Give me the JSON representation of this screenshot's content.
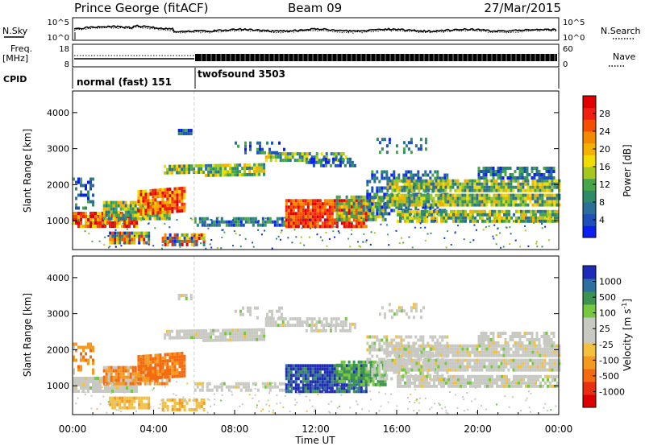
{
  "header": {
    "station": "Prince George (fitACF)",
    "beam": "Beam 09",
    "date": "27/Mar/2015"
  },
  "status_panels": {
    "nsky_label": "N.Sky",
    "nsky_ticks": [
      "10^5",
      "10^0"
    ],
    "nsearch_label": "N.Search",
    "nsearch_ticks": [
      "10^5",
      "10^0"
    ],
    "freq_label_1": "Freq.",
    "freq_label_2": "[MHz]",
    "freq_ticks": [
      "18",
      "8"
    ],
    "nave_label": "Nave",
    "nave_ticks": [
      "60",
      "0"
    ],
    "cpid_label": "CPID",
    "cpid_segments": [
      {
        "label": "normal (fast) 151",
        "start_hour": 0,
        "end_hour": 6
      },
      {
        "label": "twofsound 3503",
        "start_hour": 6,
        "end_hour": 24
      }
    ]
  },
  "chart_data": [
    {
      "type": "heatmap",
      "name": "power",
      "ylabel": "Slant Range [km]",
      "ylim": [
        200,
        4600
      ],
      "yticks": [
        1000,
        2000,
        3000,
        4000
      ],
      "colorbar": {
        "label": "Power [dB]",
        "range": [
          0,
          32
        ],
        "ticks": [
          4,
          8,
          12,
          16,
          20,
          24,
          28
        ],
        "colors": [
          "#0a20f0",
          "#1f4fb8",
          "#2c6e9a",
          "#2f8a6a",
          "#47a64a",
          "#a6c81e",
          "#f0dc00",
          "#f5b000",
          "#f58a00",
          "#f55000",
          "#f02010",
          "#e00000"
        ]
      }
    },
    {
      "type": "heatmap",
      "name": "velocity",
      "ylabel": "Slant Range [km]",
      "ylim": [
        200,
        4600
      ],
      "yticks": [
        1000,
        2000,
        3000,
        4000
      ],
      "colorbar": {
        "label": "Velocity [m s^-1]",
        "tick_labels": [
          "1000",
          "500",
          "100",
          "25",
          "-25",
          "-100",
          "-500",
          "-1000"
        ],
        "colors": [
          "#1e2ab8",
          "#2f6fa0",
          "#3c9450",
          "#76c840",
          "#c9c9c4",
          "#c9c9c4",
          "#f4c040",
          "#f59a20",
          "#f56a10",
          "#e83010",
          "#dd0000"
        ]
      }
    }
  ],
  "time_axis": {
    "label": "Time UT",
    "ticks": [
      "00:00",
      "04:00",
      "08:00",
      "12:00",
      "16:00",
      "20:00",
      "00:00"
    ],
    "range_hours": [
      0,
      24
    ]
  }
}
